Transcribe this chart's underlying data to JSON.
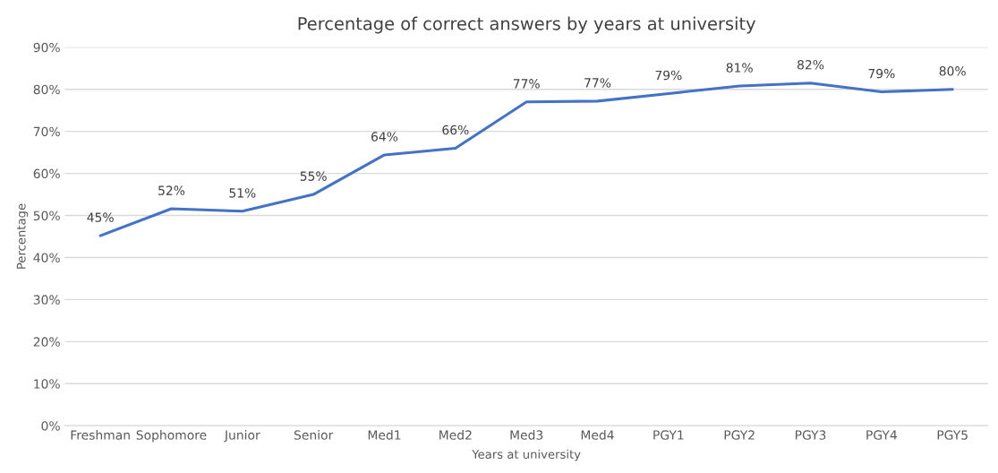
{
  "chart_data": {
    "type": "line",
    "title": "Percentage of correct answers by years at university",
    "xlabel": "Years at university",
    "ylabel": "Percentage",
    "categories": [
      "Freshman",
      "Sophomore",
      "Junior",
      "Senior",
      "Med1",
      "Med2",
      "Med3",
      "Med4",
      "PGY1",
      "PGY2",
      "PGY3",
      "PGY4",
      "PGY5"
    ],
    "series": [
      {
        "color": "#4472c4",
        "values": [
          45.2,
          51.6,
          51.0,
          55.0,
          64.4,
          66.0,
          77.0,
          77.2,
          79.0,
          80.8,
          81.5,
          79.4,
          80.0
        ],
        "value_labels": [
          "45%",
          "52%",
          "51%",
          "55%",
          "64%",
          "66%",
          "77%",
          "77%",
          "79%",
          "81%",
          "82%",
          "79%",
          "80%"
        ]
      }
    ],
    "ylim": [
      0,
      90
    ],
    "yticks": [
      {
        "value": 0,
        "label": "0%"
      },
      {
        "value": 10,
        "label": "10%"
      },
      {
        "value": 20,
        "label": "20%"
      },
      {
        "value": 30,
        "label": "30%"
      },
      {
        "value": 40,
        "label": "40%"
      },
      {
        "value": 50,
        "label": "50%"
      },
      {
        "value": 60,
        "label": "60%"
      },
      {
        "value": 70,
        "label": "70%"
      },
      {
        "value": 80,
        "label": "80%"
      },
      {
        "value": 90,
        "label": "90%"
      }
    ],
    "grid": "y",
    "marker": "none",
    "line_style": "solid"
  }
}
